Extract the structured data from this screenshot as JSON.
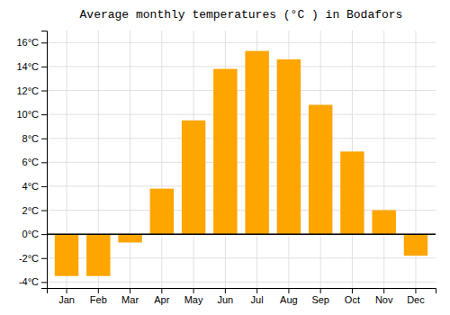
{
  "chart_data": {
    "type": "bar",
    "title": "Average monthly temperatures (°C ) in Bodafors",
    "categories": [
      "Jan",
      "Feb",
      "Mar",
      "Apr",
      "May",
      "Jun",
      "Jul",
      "Aug",
      "Sep",
      "Oct",
      "Nov",
      "Dec"
    ],
    "values": [
      -3.5,
      -3.5,
      -0.7,
      3.8,
      9.5,
      13.8,
      15.3,
      14.6,
      10.8,
      6.9,
      2.0,
      -1.8
    ],
    "color": "#FFA500",
    "ylim": [
      -4.5,
      17.0
    ],
    "yticks": [
      {
        "value": -4,
        "label": "-4°C"
      },
      {
        "value": -2,
        "label": "-2°C"
      },
      {
        "value": 0,
        "label": "0°C"
      },
      {
        "value": 2,
        "label": "2°C"
      },
      {
        "value": 4,
        "label": "4°C"
      },
      {
        "value": 6,
        "label": "6°C"
      },
      {
        "value": 8,
        "label": "8°C"
      },
      {
        "value": 10,
        "label": "10°C"
      },
      {
        "value": 12,
        "label": "12°C"
      },
      {
        "value": 14,
        "label": "14°C"
      },
      {
        "value": 16,
        "label": "16°C"
      }
    ],
    "grid": true
  }
}
